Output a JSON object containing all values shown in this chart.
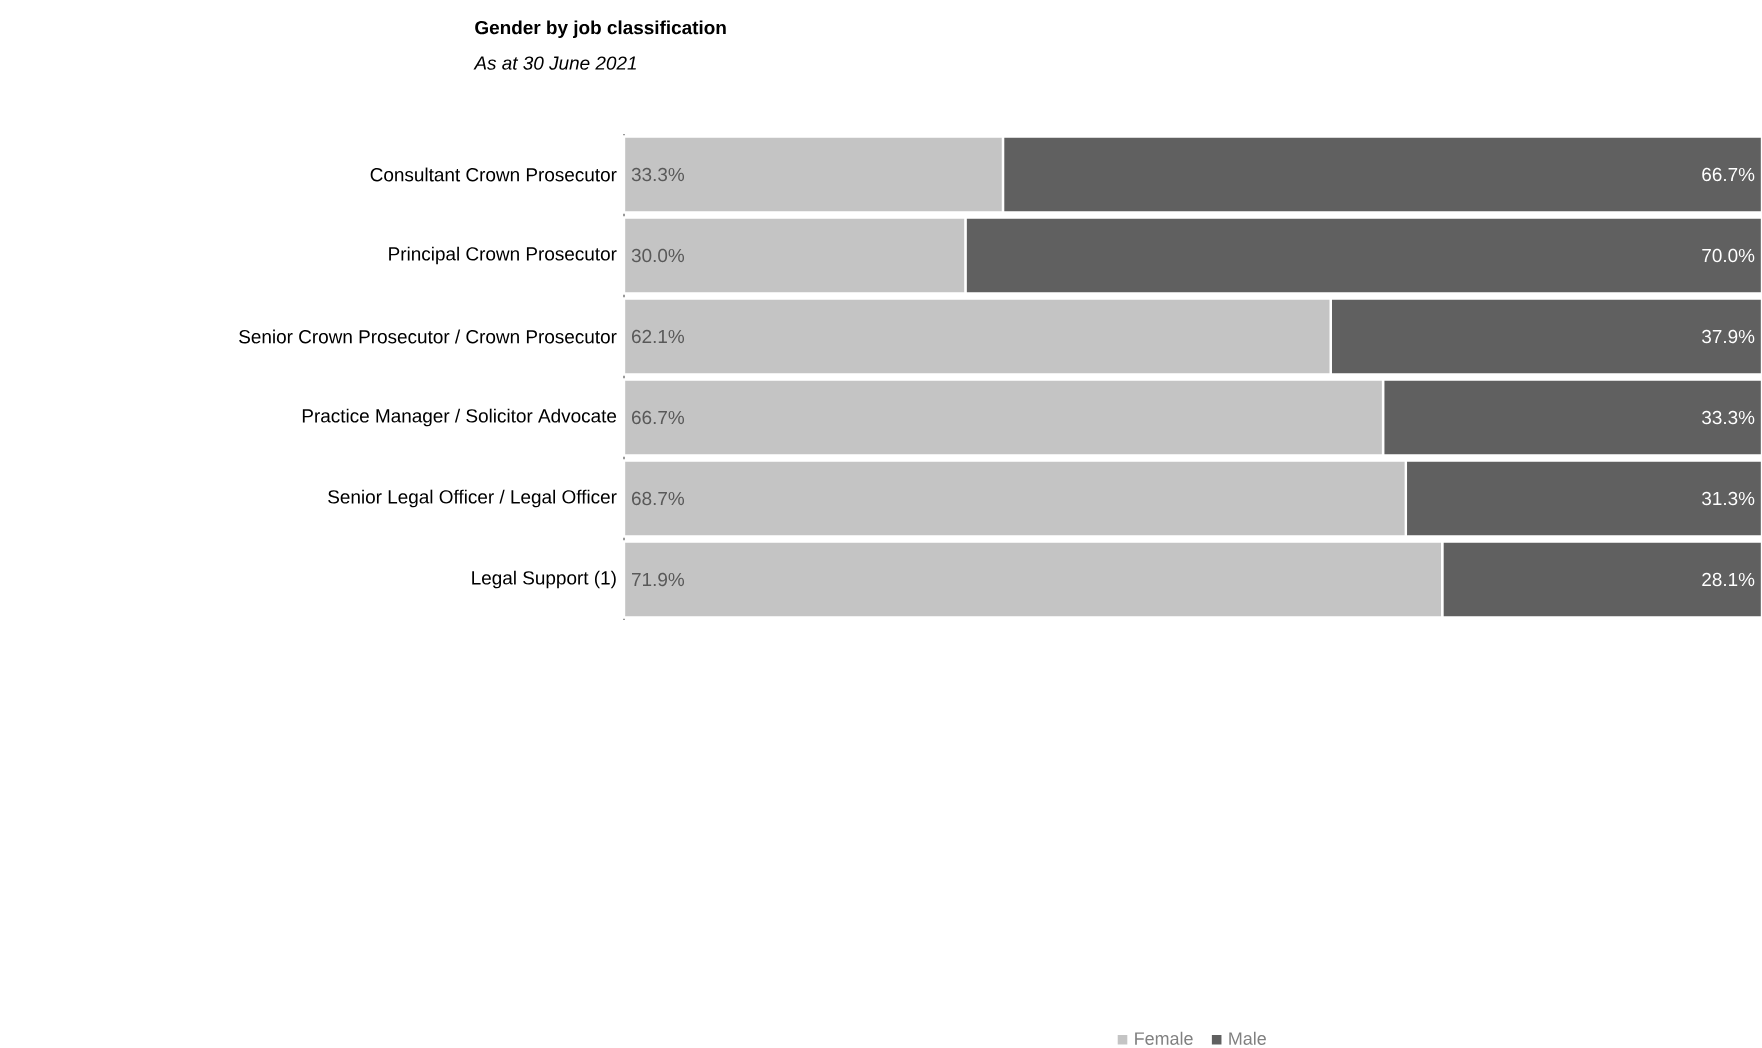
{
  "chart_data": {
    "type": "bar",
    "orientation": "horizontal",
    "stacked": true,
    "title": "Gender by job classification",
    "subtitle": "As at 30 June 2021",
    "categories": [
      "Consultant Crown Prosecutor",
      "Principal Crown Prosecutor",
      "Senior Crown Prosecutor / Crown Prosecutor",
      "Practice Manager / Solicitor Advocate",
      "Senior Legal Officer / Legal Officer",
      "Legal Support (1)"
    ],
    "series": [
      {
        "name": "Female",
        "color": "#c4c4c4",
        "values": [
          33.3,
          30.0,
          62.1,
          66.7,
          68.7,
          71.9
        ],
        "value_labels": [
          "33.3%",
          "30.0%",
          "62.1%",
          "66.7%",
          "68.7%",
          "71.9%"
        ]
      },
      {
        "name": "Male",
        "color": "#606060",
        "values": [
          66.7,
          70.0,
          37.9,
          33.3,
          31.3,
          28.1
        ],
        "value_labels": [
          "66.7%",
          "70.0%",
          "37.9%",
          "33.3%",
          "31.3%",
          "28.1%"
        ]
      }
    ],
    "xlim": [
      0,
      100
    ],
    "tick_labels": "y",
    "legend": "bottom"
  }
}
